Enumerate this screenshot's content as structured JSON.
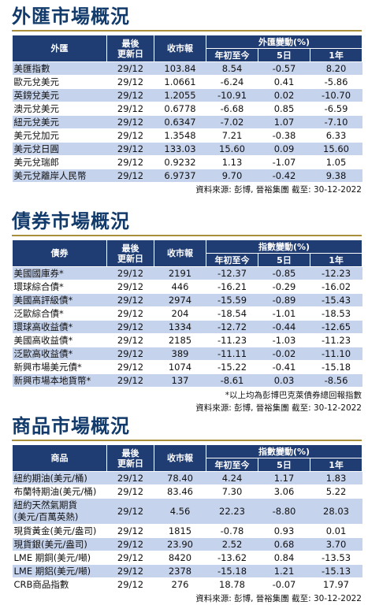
{
  "fx": {
    "title": "外匯市場概況",
    "headers": {
      "name": "外匯",
      "date": "最後\n更新日",
      "close": "收市報",
      "group": "外匯變動(%)",
      "ytd": "年初至今",
      "d5": "5日",
      "y1": "1年"
    },
    "rows": [
      {
        "name": "美匯指數",
        "date": "29/12",
        "close": "103.84",
        "ytd": "8.54",
        "d5": "-0.57",
        "y1": "8.20"
      },
      {
        "name": "歐元兌美元",
        "date": "29/12",
        "close": "1.0661",
        "ytd": "-6.24",
        "d5": "0.41",
        "y1": "-5.86"
      },
      {
        "name": "英鎊兌美元",
        "date": "29/12",
        "close": "1.2055",
        "ytd": "-10.91",
        "d5": "0.02",
        "y1": "-10.70"
      },
      {
        "name": "澳元兌美元",
        "date": "29/12",
        "close": "0.6778",
        "ytd": "-6.68",
        "d5": "0.85",
        "y1": "-6.59"
      },
      {
        "name": "紐元兌美元",
        "date": "29/12",
        "close": "0.6347",
        "ytd": "-7.02",
        "d5": "1.07",
        "y1": "-7.10"
      },
      {
        "name": "美元兌加元",
        "date": "29/12",
        "close": "1.3548",
        "ytd": "7.21",
        "d5": "-0.38",
        "y1": "6.33"
      },
      {
        "name": "美元兌日圓",
        "date": "29/12",
        "close": "133.03",
        "ytd": "15.60",
        "d5": "0.09",
        "y1": "15.60"
      },
      {
        "name": "美元兌瑞郎",
        "date": "29/12",
        "close": "0.9232",
        "ytd": "1.13",
        "d5": "-1.07",
        "y1": "1.05"
      },
      {
        "name": "美元兌離岸人民幣",
        "date": "29/12",
        "close": "6.9737",
        "ytd": "9.70",
        "d5": "-0.42",
        "y1": "9.38"
      }
    ],
    "source": "資料來源: 彭博, 晉裕集團 截至: 30-12-2022"
  },
  "bond": {
    "title": "債券市場概況",
    "headers": {
      "name": "債券",
      "date": "最後\n更新日",
      "close": "收市報",
      "group": "指數變動(%)",
      "ytd": "年初至今",
      "d5": "5日",
      "y1": "1年"
    },
    "rows": [
      {
        "name": "美國國庫券*",
        "date": "29/12",
        "close": "2191",
        "ytd": "-12.37",
        "d5": "-0.85",
        "y1": "-12.23"
      },
      {
        "name": "環球綜合債*",
        "date": "29/12",
        "close": "446",
        "ytd": "-16.21",
        "d5": "-0.29",
        "y1": "-16.02"
      },
      {
        "name": "美國高評級債*",
        "date": "29/12",
        "close": "2974",
        "ytd": "-15.59",
        "d5": "-0.89",
        "y1": "-15.43"
      },
      {
        "name": "泛歐綜合債*",
        "date": "29/12",
        "close": "204",
        "ytd": "-18.54",
        "d5": "-1.01",
        "y1": "-18.53"
      },
      {
        "name": "環球高收益債*",
        "date": "29/12",
        "close": "1334",
        "ytd": "-12.72",
        "d5": "-0.44",
        "y1": "-12.65"
      },
      {
        "name": "美國高收益債*",
        "date": "29/12",
        "close": "2185",
        "ytd": "-11.23",
        "d5": "-1.03",
        "y1": "-11.23"
      },
      {
        "name": "泛歐高收益債*",
        "date": "29/12",
        "close": "389",
        "ytd": "-11.11",
        "d5": "-0.02",
        "y1": "-11.10"
      },
      {
        "name": "新興市場美元債*",
        "date": "29/12",
        "close": "1074",
        "ytd": "-15.22",
        "d5": "-0.41",
        "y1": "-15.18"
      },
      {
        "name": "新興市場本地貨幣*",
        "date": "29/12",
        "close": "137",
        "ytd": "-8.61",
        "d5": "0.03",
        "y1": "-8.56"
      }
    ],
    "note": "*以上均為彭博巴克萊債券總回報指數",
    "source": "資料來源: 彭博, 晉裕集團 截至: 30-12-2022"
  },
  "commodity": {
    "title": "商品市場概況",
    "headers": {
      "name": "商品",
      "date": "最後\n更新日",
      "close": "收市報",
      "group": "指數變動(%)",
      "ytd": "年初至今",
      "d5": "5日",
      "y1": "1年"
    },
    "rows": [
      {
        "name": "紐約期油(美元/桶)",
        "date": "29/12",
        "close": "78.40",
        "ytd": "4.24",
        "d5": "1.17",
        "y1": "1.83"
      },
      {
        "name": "布蘭特期油(美元/桶)",
        "date": "29/12",
        "close": "83.46",
        "ytd": "7.30",
        "d5": "3.06",
        "y1": "5.22"
      },
      {
        "name": "紐約天然氣期貨\n(美元/百萬英熱)",
        "date": "29/12",
        "close": "4.56",
        "ytd": "22.23",
        "d5": "-8.80",
        "y1": "28.03"
      },
      {
        "name": "現貨黃金(美元/盎司)",
        "date": "29/12",
        "close": "1815",
        "ytd": "-0.78",
        "d5": "0.93",
        "y1": "0.01"
      },
      {
        "name": "現貨銀(美元/盎司)",
        "date": "29/12",
        "close": "23.90",
        "ytd": "2.52",
        "d5": "0.68",
        "y1": "3.70"
      },
      {
        "name": "LME 期銅(美元/噸)",
        "date": "29/12",
        "close": "8420",
        "ytd": "-13.62",
        "d5": "0.84",
        "y1": "-13.53"
      },
      {
        "name": "LME 期鋁(美元/噸)",
        "date": "29/12",
        "close": "2378",
        "ytd": "-15.18",
        "d5": "1.21",
        "y1": "-15.13"
      },
      {
        "name": "CRB商品指數",
        "date": "29/12",
        "close": "276",
        "ytd": "18.78",
        "d5": "-0.07",
        "y1": "17.97"
      }
    ],
    "source": "資料來源: 彭博, 晉裕集團 截至: 30-12-2022"
  }
}
